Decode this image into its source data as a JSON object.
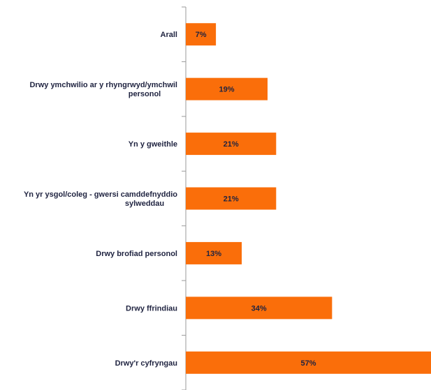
{
  "chart_data": {
    "type": "bar",
    "orientation": "horizontal",
    "categories": [
      [
        "Arall"
      ],
      [
        "Drwy ymchwilio ar y rhyngrwyd/ymchwil",
        "personol"
      ],
      [
        "Yn y gweithle"
      ],
      [
        "Yn yr ysgol/coleg - gwersi camddefnyddio",
        "sylweddau"
      ],
      [
        "Drwy brofiad personol"
      ],
      [
        "Drwy ffrindiau"
      ],
      [
        "Drwy'r cyfryngau"
      ]
    ],
    "values": [
      7,
      19,
      21,
      21,
      13,
      34,
      57
    ],
    "value_labels": [
      "7%",
      "19%",
      "21%",
      "21%",
      "13%",
      "34%",
      "57%"
    ],
    "unit": "%",
    "xlim": [
      0,
      57
    ],
    "title": "",
    "xlabel": "",
    "ylabel": "",
    "grid": false,
    "legend": "none",
    "colors": {
      "bar": "#fa6e0a",
      "axis": "#9a9a9a",
      "text": "#1f2340"
    }
  }
}
